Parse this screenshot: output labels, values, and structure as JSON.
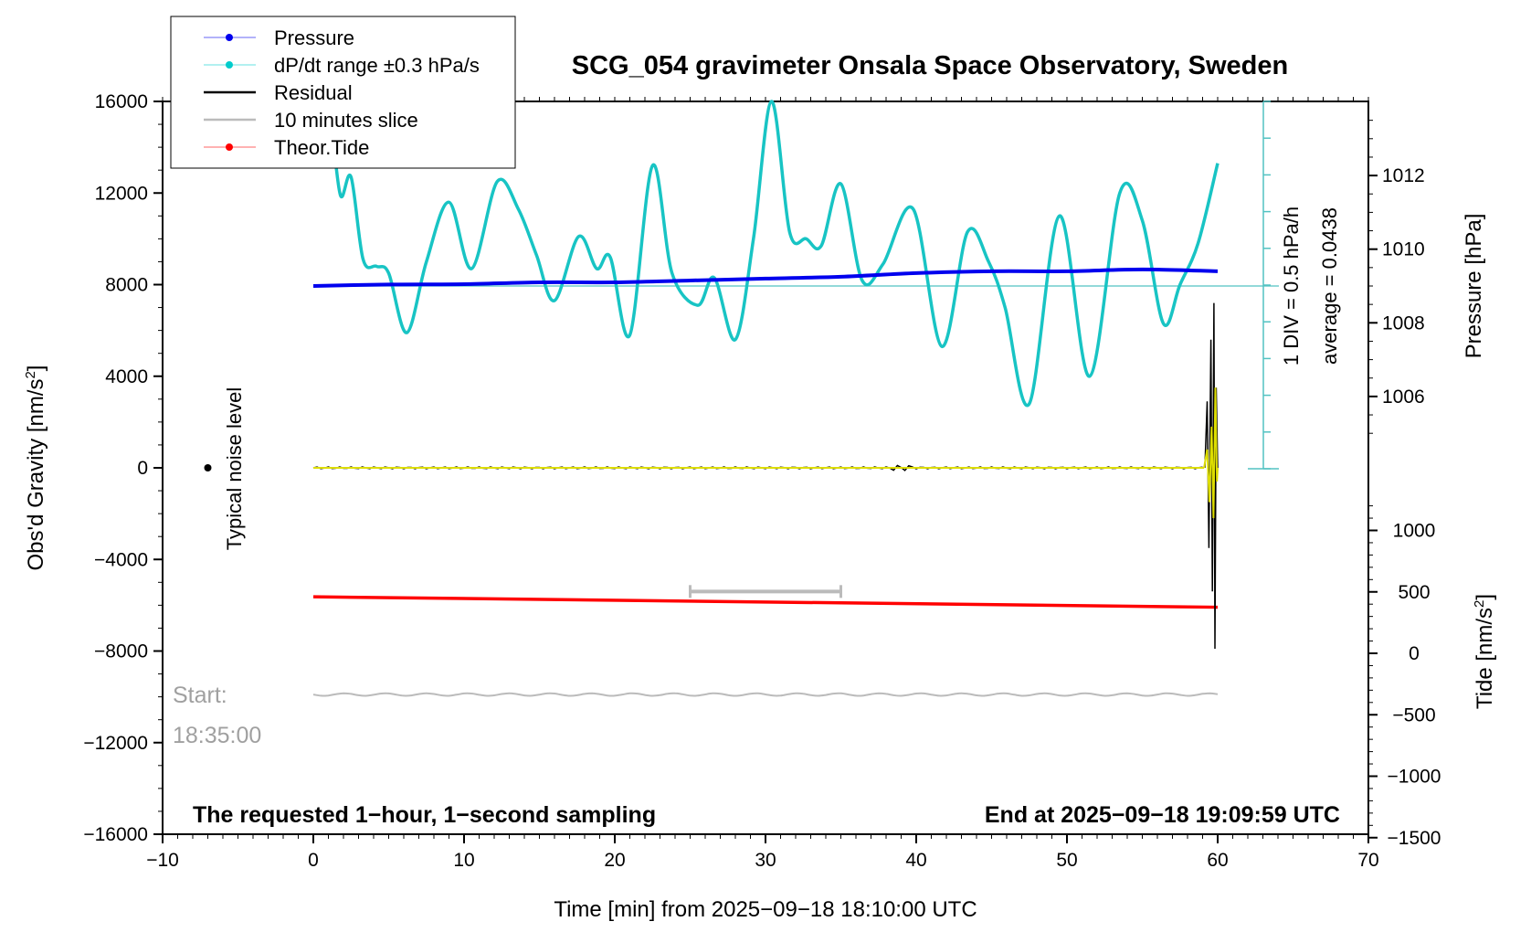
{
  "chart_data": {
    "type": "line",
    "title": "SCG_054 gravimeter Onsala Space Observatory, Sweden",
    "xlabel": "Time [min] from 2025−09−18 18:10:00 UTC",
    "ylabel_left": "Obs'd Gravity [nm/s",
    "ylabel_left_suffix": "]",
    "ylabel_right_pressure": "Pressure [hPa]",
    "ylabel_right_tide": "Tide [nm/s",
    "ylabel_right_tide_suffix": "]",
    "superscript": "2",
    "xlim": [
      -10,
      70
    ],
    "ylim_left": [
      -16000,
      16000
    ],
    "x_ticks": [
      "−10",
      "0",
      "10",
      "20",
      "30",
      "40",
      "50",
      "60",
      "70"
    ],
    "x_tick_values": [
      -10,
      0,
      10,
      20,
      30,
      40,
      50,
      60,
      70
    ],
    "y_left_ticks": [
      "16000",
      "12000",
      "8000",
      "4000",
      "0",
      "−4000",
      "−8000",
      "−12000",
      "−16000"
    ],
    "y_left_tick_values": [
      16000,
      12000,
      8000,
      4000,
      0,
      -4000,
      -8000,
      -12000,
      -16000
    ],
    "pressure_ticks": [
      "1012",
      "1010",
      "1008",
      "1006"
    ],
    "pressure_tick_values": [
      1012,
      1010,
      1008,
      1006
    ],
    "tide_ticks": [
      "1000",
      "500",
      "0",
      "−500",
      "−1000",
      "−1500"
    ],
    "tide_tick_values": [
      1000,
      500,
      0,
      -500,
      -1000,
      -1500
    ],
    "legend": [
      {
        "label": "Pressure",
        "color": "#0000ee",
        "marker": true
      },
      {
        "label": "dP/dt range ±0.3 hPa/s",
        "color": "#00cccc",
        "marker": true
      },
      {
        "label": "Residual",
        "color": "#000000",
        "marker": false
      },
      {
        "label": "10 minutes slice",
        "color": "#bbbbbb",
        "marker": false
      },
      {
        "label": "Theor.Tide",
        "color": "#ff0000",
        "marker": true
      }
    ],
    "colors": {
      "pressure": "#0000ee",
      "dpdt": "#18c4c4",
      "residual": "#000000",
      "residual_filtered": "#dddd00",
      "tide": "#ff0000",
      "slice": "#bbbbbb",
      "start_text": "#a0a0a0"
    },
    "series": [
      {
        "name": "Pressure",
        "axis": "pressure",
        "x": [
          0,
          5,
          10,
          15,
          20,
          25,
          30,
          35,
          40,
          45,
          50,
          55,
          60
        ],
        "values": [
          1009.0,
          1009.04,
          1009.05,
          1009.1,
          1009.1,
          1009.15,
          1009.2,
          1009.25,
          1009.35,
          1009.4,
          1009.4,
          1009.45,
          1009.4
        ]
      },
      {
        "name": "dP/dt range ±0.3 hPa/s",
        "axis": "left",
        "x": [
          1.2,
          1.8,
          2.5,
          3.3,
          4.2,
          5.0,
          6.2,
          7.5,
          9.0,
          10.5,
          12.2,
          13.6,
          14.8,
          16.0,
          17.6,
          18.8,
          19.7,
          21.0,
          22.5,
          23.8,
          25.5,
          26.6,
          28.0,
          29.2,
          30.4,
          31.6,
          32.7,
          33.7,
          35.0,
          36.4,
          37.8,
          39.8,
          41.7,
          43.4,
          44.8,
          45.9,
          47.5,
          49.5,
          51.5,
          53.5,
          55.0,
          56.4,
          57.5,
          58.7,
          60.0
        ],
        "values": [
          15200,
          11900,
          12700,
          9100,
          8800,
          8500,
          5900,
          9000,
          11600,
          8700,
          12500,
          11300,
          9300,
          7300,
          10100,
          8700,
          9200,
          5800,
          13200,
          8500,
          7100,
          8300,
          5600,
          10000,
          16000,
          10300,
          10000,
          9700,
          12400,
          8200,
          8900,
          11300,
          5300,
          10300,
          9000,
          7000,
          2800,
          11000,
          4000,
          12000,
          10800,
          6300,
          8000,
          9800,
          13300
        ]
      },
      {
        "name": "Residual",
        "axis": "left",
        "x": [
          0,
          38.5,
          38.7,
          39.0,
          59.2,
          59.4,
          59.6,
          59.8,
          60.0
        ],
        "values": [
          0,
          0,
          150,
          -150,
          0,
          2800,
          -5200,
          7000,
          -7800
        ]
      },
      {
        "name": "Theor.Tide",
        "axis": "tide",
        "x": [
          0,
          60
        ],
        "values": [
          460,
          375
        ]
      }
    ],
    "slice": {
      "x_start": 25,
      "x_end": 35,
      "y": -5400
    },
    "noise_level_label": "Typical noise level",
    "noise_marker": {
      "x": -7,
      "y": 0
    },
    "start_label": "Start:",
    "start_time": "18:35:00",
    "dpdt_scale_label": "1 DIV = 0.5 hPa/h",
    "dpdt_average_label": "average = 0.0438",
    "footer_left": "The requested 1−hour, 1−second sampling",
    "footer_right": "End at 2025−09−18 19:09:59 UTC",
    "grid": false,
    "legend_position": "top-left"
  }
}
